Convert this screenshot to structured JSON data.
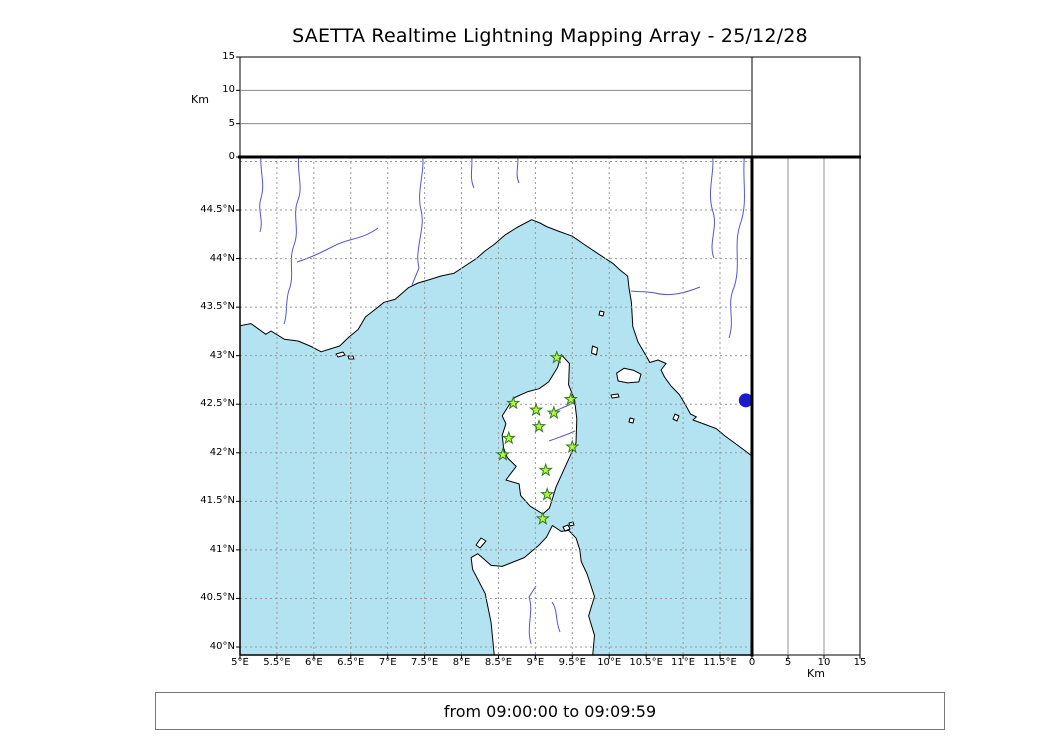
{
  "title": "SAETTA Realtime Lightning Mapping Array - 25/12/28",
  "footer": {
    "text": "from 09:00:00 to 09:09:59"
  },
  "axes": {
    "lat_labels": [
      "44.5°N",
      "44°N",
      "43.5°N",
      "43°N",
      "42.5°N",
      "42°N",
      "41.5°N",
      "41°N",
      "40.5°N",
      "40°N"
    ],
    "lon_labels": [
      "5°E",
      "5.5°E",
      "6°E",
      "6.5°E",
      "7°E",
      "7.5°E",
      "8°E",
      "8.5°E",
      "9°E",
      "9.5°E",
      "10°E",
      "10.5°E",
      "11°E",
      "11.5°E"
    ],
    "altitude_top_ticks": [
      "15",
      "10",
      "5",
      "0"
    ],
    "altitude_right_ticks": [
      "0",
      "5",
      "10",
      "15"
    ],
    "altitude_unit": "Km"
  },
  "chart_data": {
    "type": "scatter",
    "title": "SAETTA Realtime Lightning Mapping Array - 25/12/28",
    "time_window": "from 09:00:00 to 09:09:59",
    "map": {
      "region": "Corsica / NW Mediterranean",
      "lon_range_deg_e": [
        5.0,
        11.9
      ],
      "lat_range_deg_n": [
        39.9,
        45.0
      ],
      "grid_step_deg": 0.5,
      "grid_style": "dashed"
    },
    "altitude_axis": {
      "unit": "Km",
      "range": [
        0,
        15
      ],
      "gridlines_km": [
        5,
        10
      ]
    },
    "stations": [
      {
        "lon": 9.29,
        "lat": 42.98
      },
      {
        "lon": 8.7,
        "lat": 42.51
      },
      {
        "lon": 9.01,
        "lat": 42.44
      },
      {
        "lon": 9.25,
        "lat": 42.41
      },
      {
        "lon": 9.48,
        "lat": 42.55
      },
      {
        "lon": 9.05,
        "lat": 42.27
      },
      {
        "lon": 8.64,
        "lat": 42.15
      },
      {
        "lon": 8.56,
        "lat": 41.98
      },
      {
        "lon": 9.5,
        "lat": 42.06
      },
      {
        "lon": 9.14,
        "lat": 41.82
      },
      {
        "lon": 9.16,
        "lat": 41.57
      },
      {
        "lon": 9.1,
        "lat": 41.32
      }
    ],
    "marker_dot": {
      "lon": 11.85,
      "lat": 42.54,
      "color": "#1b1bd0"
    },
    "lightning_sources": []
  },
  "colors": {
    "sea": "#b3e3f1",
    "land": "#ffffff",
    "coast": "#000000",
    "river": "#5555cc",
    "grid": "#999999",
    "station_fill": "#b8f53c",
    "station_edge": "#2f7d1e"
  }
}
